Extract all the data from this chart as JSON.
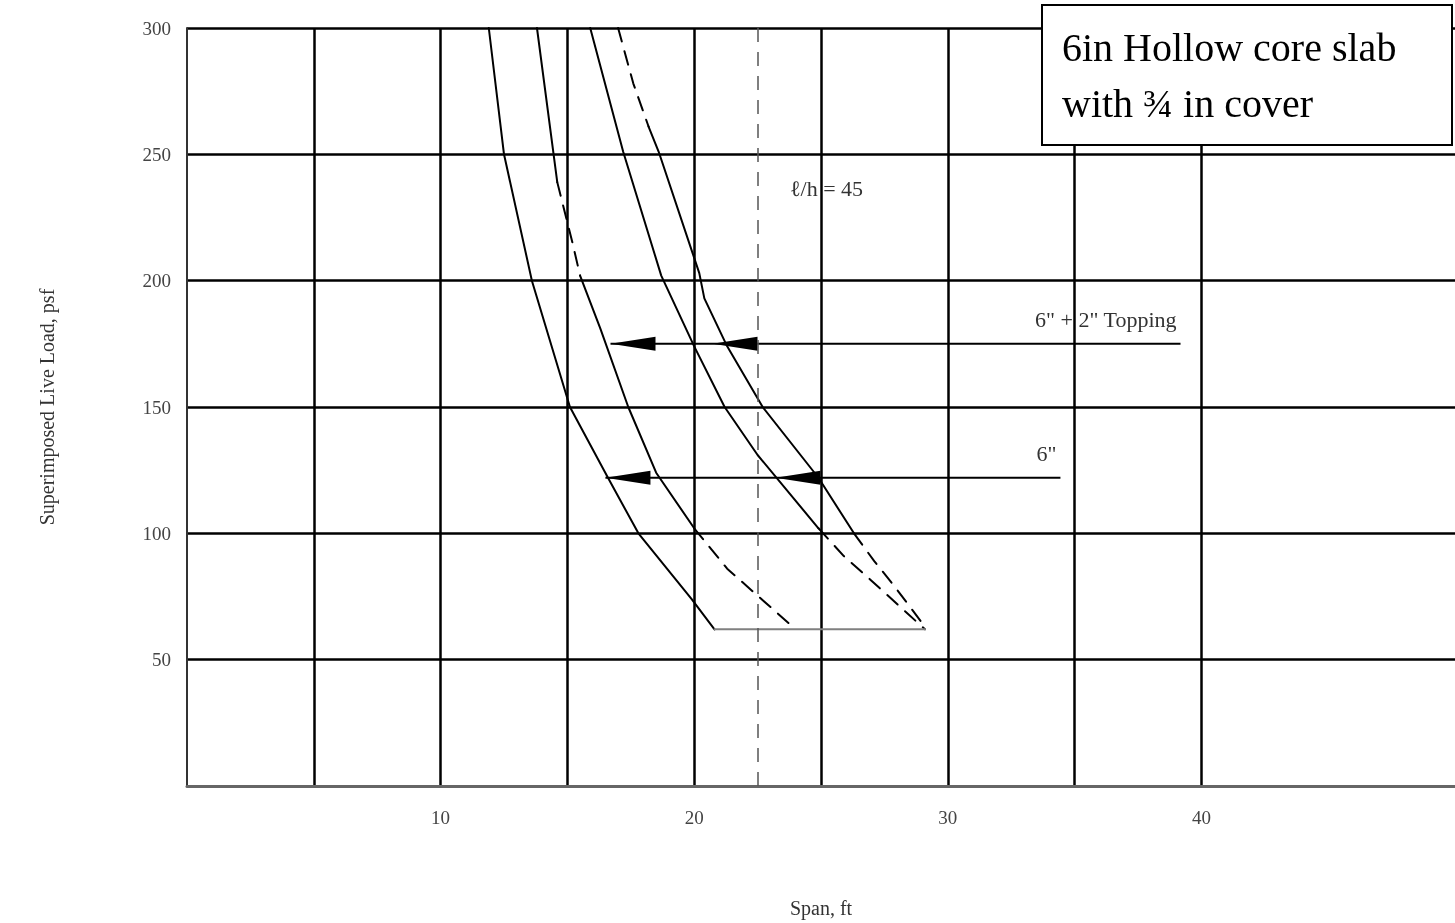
{
  "chart_data": {
    "type": "line",
    "title": "6in Hollow core slab with ¾ in cover",
    "xlabel": "Span, ft",
    "ylabel": "Superimposed Live Load, psf",
    "xlim": [
      0,
      50
    ],
    "ylim": [
      0,
      300
    ],
    "xticks": [
      {
        "value": 5,
        "label": null
      },
      10,
      {
        "value": 15,
        "label": null
      },
      20,
      {
        "value": 25,
        "label": null
      },
      30,
      {
        "value": 35,
        "label": null
      },
      40
    ],
    "yticks": [
      50,
      100,
      150,
      200,
      250,
      300
    ],
    "grid": true,
    "marker": "none",
    "series": [
      {
        "color": "#000000",
        "line_style": "solid",
        "x": [
          11.9,
          12.5,
          13.6,
          15.1,
          16.6,
          17.8,
          19.9,
          20.8
        ],
        "values": [
          300,
          250,
          200,
          150,
          122,
          100,
          74,
          62
        ]
      },
      {
        "color": "#000000",
        "line_style": "solid",
        "x": [
          13.8,
          14.6
        ],
        "values": [
          300,
          239
        ]
      },
      {
        "color": "#000000",
        "line_style": "dashed",
        "x": [
          14.6,
          15.2,
          15.5
        ],
        "values": [
          239,
          215,
          202
        ]
      },
      {
        "color": "#000000",
        "line_style": "solid",
        "x": [
          15.5,
          16.3,
          17.4,
          18.5,
          20.0
        ],
        "values": [
          202,
          181,
          150,
          124,
          102
        ]
      },
      {
        "color": "#000000",
        "line_style": "dashed",
        "x": [
          20.0,
          21.3,
          24.0
        ],
        "values": [
          102,
          86,
          62
        ]
      },
      {
        "color": "#000000",
        "line_style": "solid",
        "x": [
          15.9,
          17.2,
          18.7,
          20.0,
          21.2,
          22.5,
          24.9
        ],
        "values": [
          300,
          251,
          202,
          174,
          150,
          131,
          102
        ]
      },
      {
        "color": "#000000",
        "line_style": "dashed",
        "x": [
          24.9,
          25.9,
          26.8,
          29.1
        ],
        "values": [
          102,
          91,
          83,
          62
        ]
      },
      {
        "color": "#000000",
        "line_style": "dashed",
        "x": [
          17.0,
          17.6,
          18.2
        ],
        "values": [
          300,
          278,
          261
        ]
      },
      {
        "color": "#000000",
        "line_style": "solid",
        "x": [
          18.2,
          18.6,
          19.9,
          20.2,
          20.4,
          21.3,
          22.7,
          24.9,
          26.3
        ],
        "values": [
          261,
          251,
          212,
          203,
          193,
          174,
          150,
          122,
          100
        ]
      },
      {
        "color": "#000000",
        "line_style": "dashed",
        "x": [
          26.3,
          27.1,
          27.9,
          29.1
        ],
        "values": [
          100,
          89,
          79,
          63
        ]
      },
      {
        "color": "#808080",
        "line_style": "solid",
        "x": [
          20.8,
          29.1
        ],
        "values": [
          62,
          62
        ]
      }
    ],
    "ref_lines": [
      {
        "axis": "x",
        "value": 22.5,
        "line_style": "dashed",
        "color": "#555555"
      }
    ],
    "annotations": [
      "ℓ/h = 45",
      {
        "text": "6\" + 2\" Topping",
        "x": 16.7,
        "y": 175
      },
      {
        "text": "6\"",
        "x": 16.5,
        "y": 122
      }
    ]
  }
}
